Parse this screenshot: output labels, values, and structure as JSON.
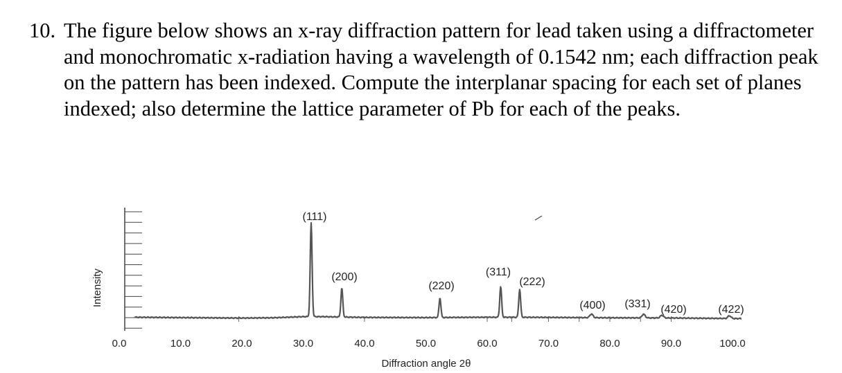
{
  "problem": {
    "number": "10.",
    "text": "The figure below shows an x-ray diffraction pattern for lead taken using a diffractometer and monochromatic x-radiation having a wavelength of 0.1542 nm; each diffraction peak on the pattern has been indexed. Compute the interplanar spacing for each set of planes indexed; also determine the lattice parameter of Pb for each of the peaks."
  },
  "chart_data": {
    "type": "line",
    "xlabel": "Diffraction angle 2θ",
    "ylabel": "Intensity",
    "xlim": [
      0,
      100
    ],
    "x_ticks": [
      "0.0",
      "10.0",
      "20.0",
      "30.0",
      "40.0",
      "50.0",
      "60.0",
      "70.0",
      "80.0",
      "90.0",
      "100.0"
    ],
    "x_tick_values": [
      0,
      10,
      20,
      30,
      40,
      50,
      60,
      70,
      80,
      90,
      100
    ],
    "ylim": [
      0,
      100
    ],
    "grid": false,
    "peaks": [
      {
        "label": "(111)",
        "two_theta": 31.3,
        "intensity": 100
      },
      {
        "label": "(200)",
        "two_theta": 36.3,
        "intensity": 31
      },
      {
        "label": "(220)",
        "two_theta": 52.3,
        "intensity": 21
      },
      {
        "label": "(311)",
        "two_theta": 62.2,
        "intensity": 33
      },
      {
        "label": "(222)",
        "two_theta": 65.3,
        "intensity": 30
      },
      {
        "label": "(400)",
        "two_theta": 77.0,
        "intensity": 4
      },
      {
        "label": "(331)",
        "two_theta": 85.5,
        "intensity": 4
      },
      {
        "label": "(420)",
        "two_theta": 88.5,
        "intensity": 3
      },
      {
        "label": "(422)",
        "two_theta": 99.5,
        "intensity": 3
      }
    ],
    "background": {
      "x": [
        0,
        10,
        20,
        25,
        28,
        30,
        33,
        40,
        50,
        55,
        60,
        68,
        75,
        80,
        90,
        100
      ],
      "y": [
        3.5,
        3,
        2.5,
        2.8,
        3.5,
        4,
        4,
        3.2,
        3,
        3.2,
        3.4,
        3.3,
        3,
        2.8,
        2.6,
        2
      ]
    }
  }
}
